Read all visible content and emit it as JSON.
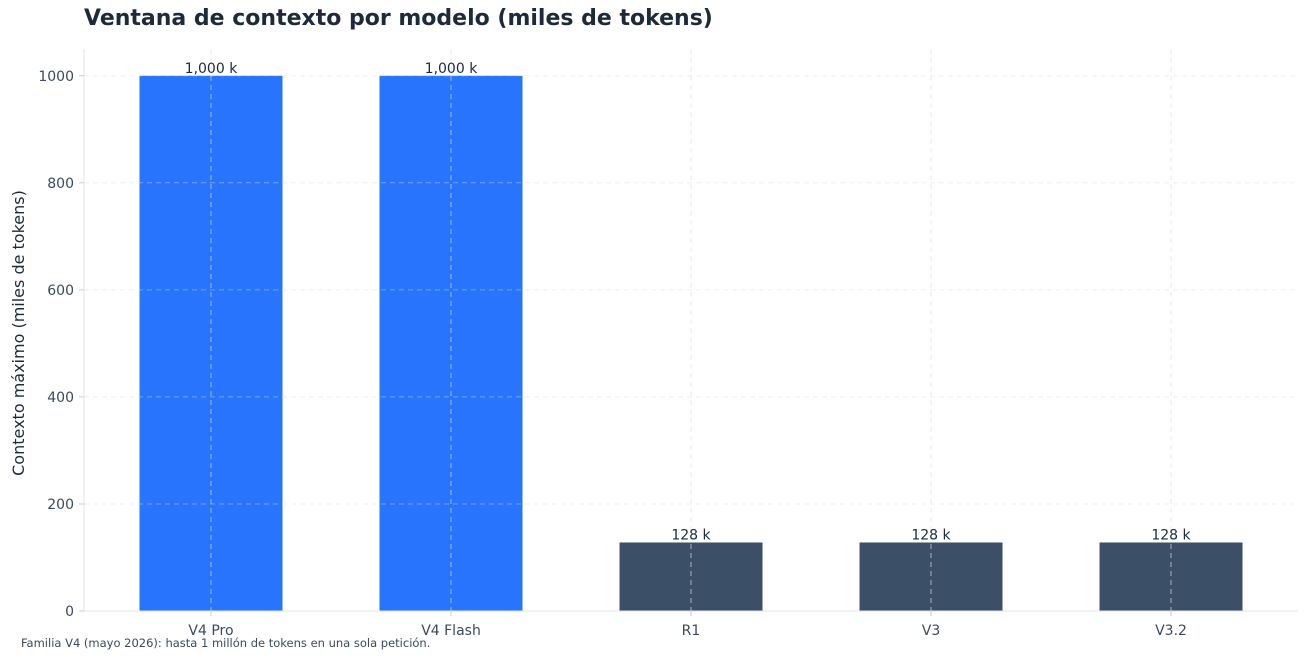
{
  "chart_data": {
    "type": "bar",
    "title": "Ventana de contexto por modelo (miles de tokens)",
    "xlabel": "",
    "ylabel": "Contexto máximo (miles de tokens)",
    "categories": [
      "V4 Pro",
      "V4 Flash",
      "R1",
      "V3",
      "V3.2"
    ],
    "values": [
      1000,
      1000,
      128,
      128,
      128
    ],
    "value_labels": [
      "1,000 k",
      "1,000 k",
      "128 k",
      "128 k",
      "128 k"
    ],
    "bar_colors": [
      "#2874fc",
      "#2874fc",
      "#3b4f66",
      "#3b4f66",
      "#3b4f66"
    ],
    "ylim": [
      0,
      1050
    ],
    "yticks": [
      0,
      200,
      400,
      600,
      800,
      1000
    ],
    "grid": true,
    "note": "Familia V4 (mayo 2026): hasta 1 millón de tokens en una sola petición."
  }
}
